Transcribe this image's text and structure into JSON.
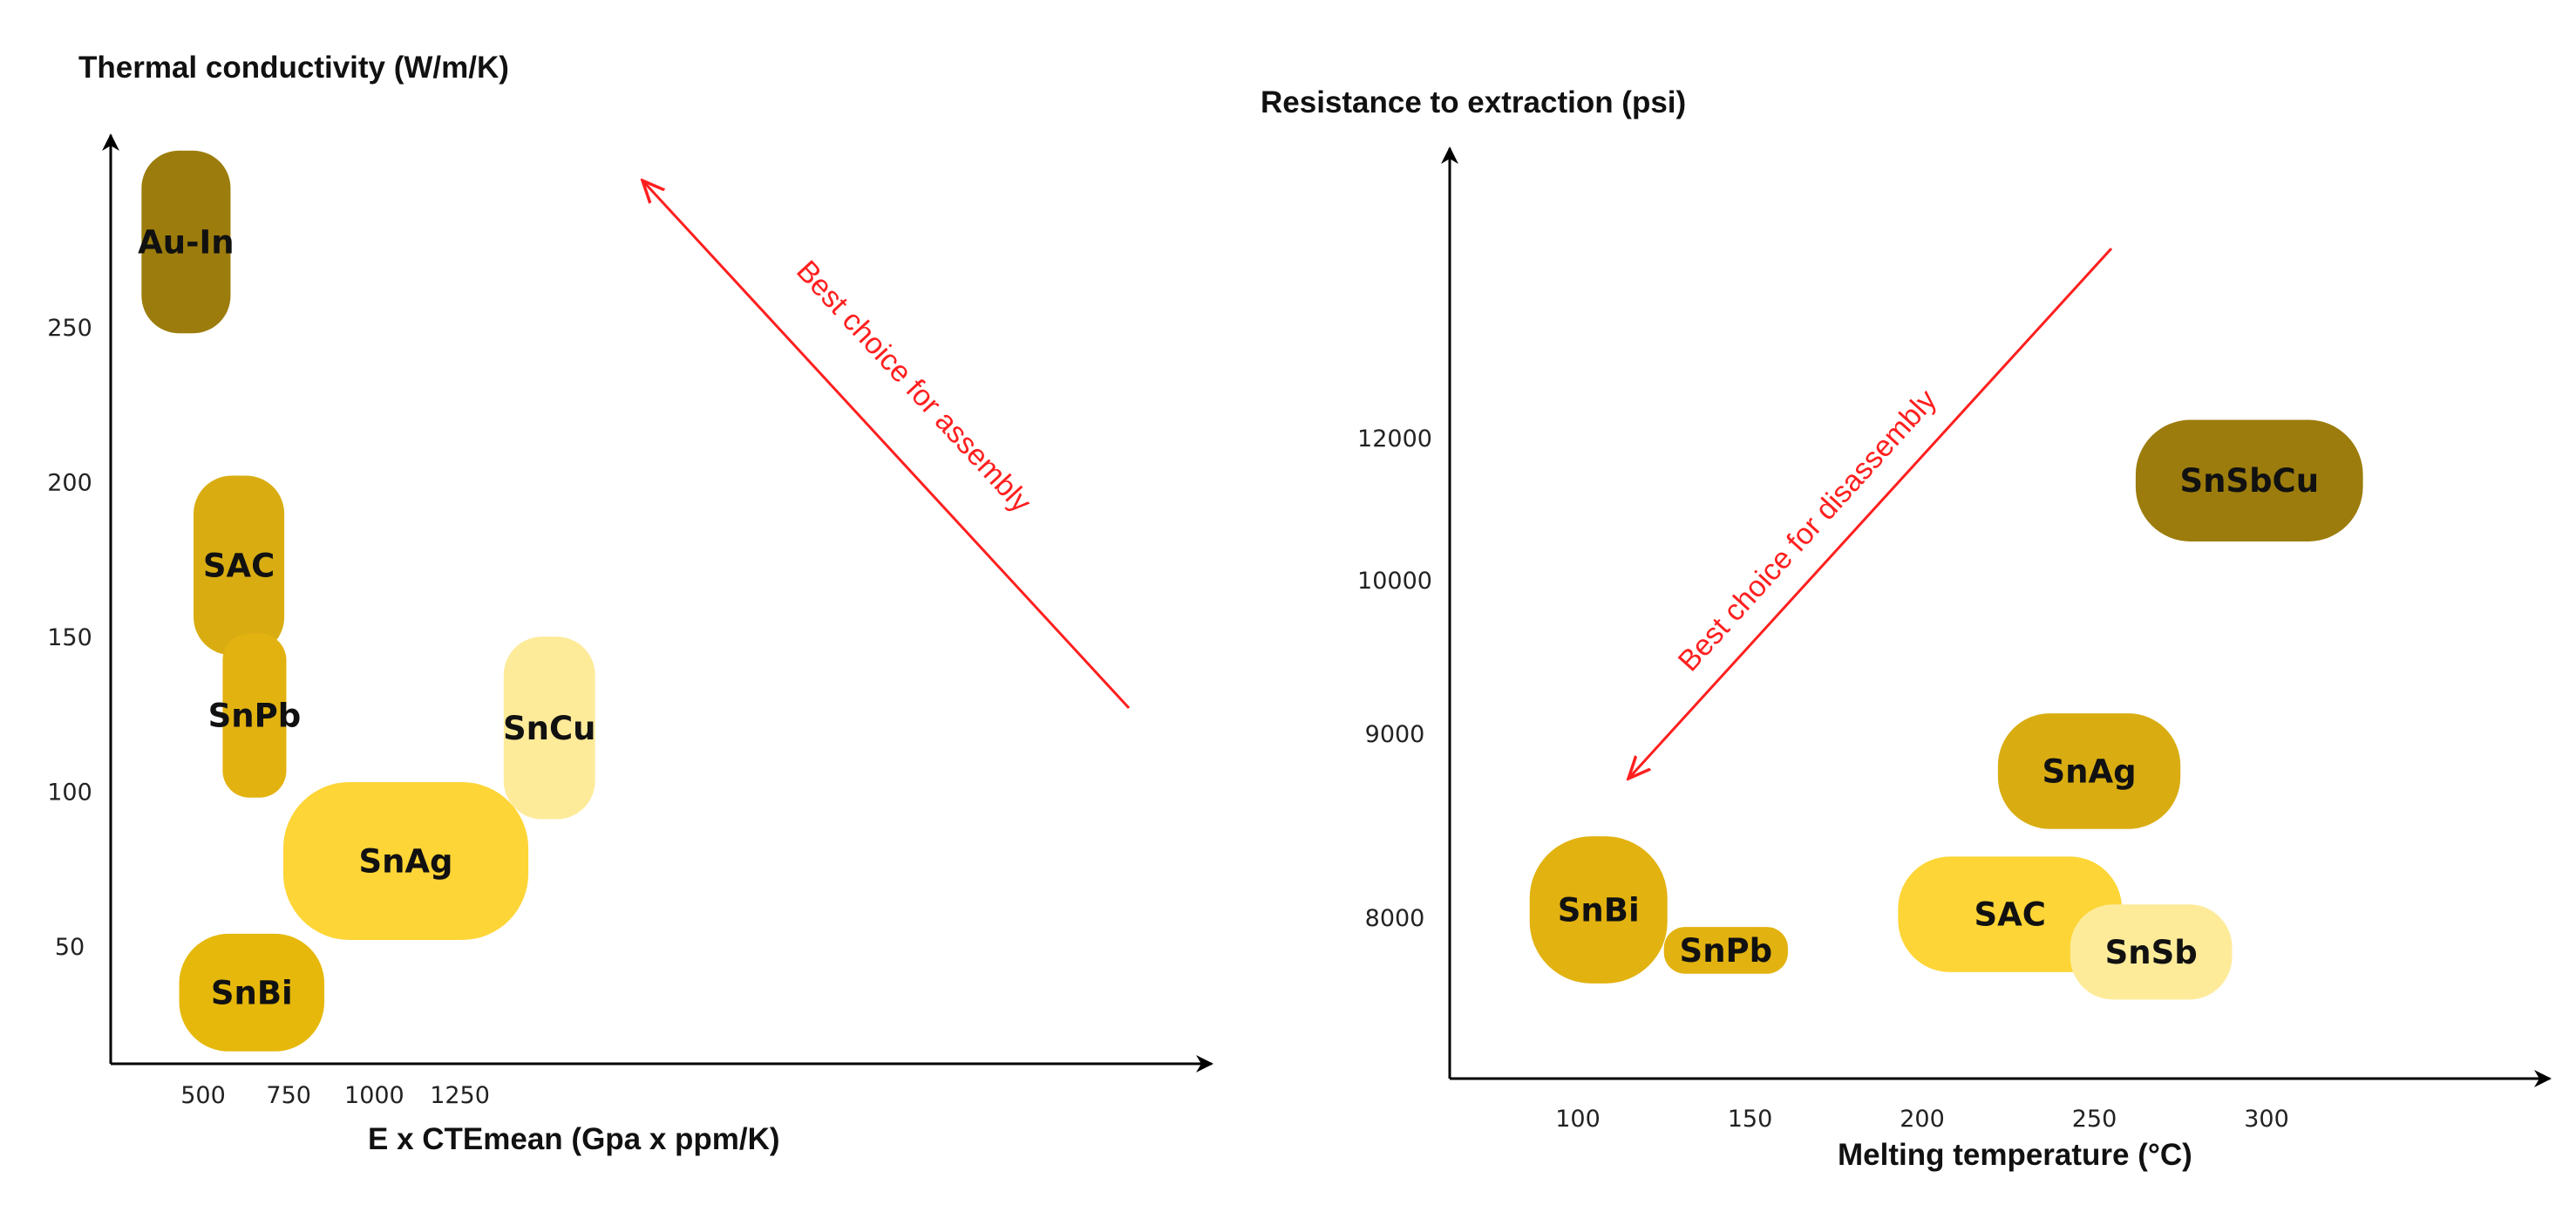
{
  "chart_data": [
    {
      "type": "region",
      "title": "",
      "ylabel": "Thermal conductivity (W/m/K)",
      "xlabel": "E x CTEmean (Gpa x ppm/K)",
      "x_ticks": [
        500,
        750,
        1000,
        1250
      ],
      "y_ticks": [
        50,
        100,
        150,
        200,
        250
      ],
      "xlim": [
        230,
        1880
      ],
      "ylim": [
        12,
        310
      ],
      "grid": false,
      "arrow_label": "Best choice for assembly",
      "arrow_direction": "toward upper-left",
      "regions": [
        {
          "label": "Au-In",
          "x": [
            320,
            580
          ],
          "y": [
            248,
            307
          ],
          "color": "#9c7c0c"
        },
        {
          "label": "SAC",
          "x": [
            472,
            737
          ],
          "y": [
            144,
            202
          ],
          "color": "#d9ad12"
        },
        {
          "label": "SnPb",
          "x": [
            557,
            743
          ],
          "y": [
            98,
            151
          ],
          "color": "#e2b210"
        },
        {
          "label": "SnAg",
          "x": [
            734,
            1450
          ],
          "y": [
            52,
            103
          ],
          "color": "#fdd536"
        },
        {
          "label": "SnCu",
          "x": [
            1378,
            1645
          ],
          "y": [
            91,
            150
          ],
          "color": "#feeb9a"
        },
        {
          "label": "SnBi",
          "x": [
            430,
            854
          ],
          "y": [
            16,
            54
          ],
          "color": "#e6b80b"
        }
      ]
    },
    {
      "type": "region",
      "title": "",
      "ylabel": "Resistance to extraction (psi)",
      "xlabel": "Melting temperature (°C)",
      "x_ticks": [
        100,
        150,
        200,
        250,
        300
      ],
      "y_ticks": [
        8000,
        9000,
        10000,
        12000
      ],
      "grid": false,
      "arrow_label": "Best choice for disassembly",
      "arrow_direction": "toward lower-left",
      "regions": [
        {
          "label": "SnSbCu",
          "x": [
            262,
            328
          ],
          "y": [
            10540,
            12250
          ],
          "color": "#9c7c0c"
        },
        {
          "label": "SnAg",
          "x": [
            222,
            275
          ],
          "y": [
            8480,
            9130
          ],
          "color": "#d9ad12"
        },
        {
          "label": "SAC",
          "x": [
            193,
            258
          ],
          "y": [
            7660,
            8330
          ],
          "color": "#fdd536"
        },
        {
          "label": "SnSb",
          "x": [
            243,
            290
          ],
          "y": [
            7490,
            8070
          ],
          "color": "#feeb9a"
        },
        {
          "label": "SnBi",
          "x": [
            86,
            126
          ],
          "y": [
            7590,
            8440
          ],
          "color": "#e2b210"
        },
        {
          "label": "SnPb",
          "x": [
            125,
            161
          ],
          "y": [
            7650,
            7940
          ],
          "color": "#e2b210"
        }
      ]
    }
  ]
}
